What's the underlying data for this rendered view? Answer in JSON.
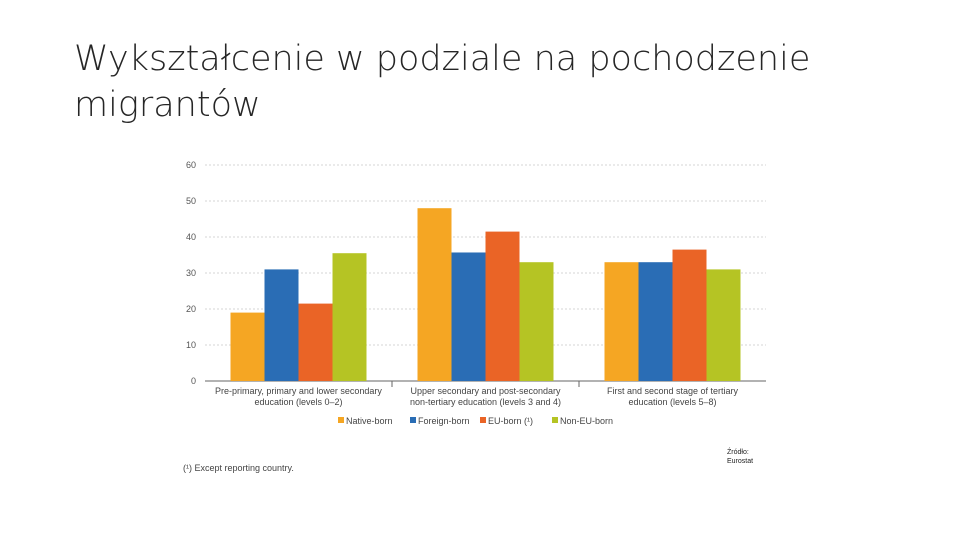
{
  "slide": {
    "title_line1": "Wykształcenie w podziale na pochodzenie",
    "title_line2": "migrantów",
    "footnote": "(¹) Except reporting country.",
    "source_line1": "Źródło:",
    "source_line2": "Eurostat"
  },
  "chart_data": {
    "type": "bar",
    "categories": [
      [
        "Pre-primary, primary and lower secondary",
        "education (levels 0–2)"
      ],
      [
        "Upper secondary and post-secondary",
        "non-tertiary education (levels 3 and 4)"
      ],
      [
        "First and second stage of tertiary",
        "education (levels 5–8)"
      ]
    ],
    "series": [
      {
        "name": "Native-born",
        "color": "#f5a623",
        "values": [
          19,
          48,
          33
        ]
      },
      {
        "name": "Foreign-born",
        "color": "#2a6db5",
        "values": [
          31,
          35.7,
          33
        ]
      },
      {
        "name": "EU-born (¹)",
        "color": "#ea6426",
        "values": [
          21.5,
          41.5,
          36.5
        ]
      },
      {
        "name": "Non-EU-born",
        "color": "#b5c424",
        "values": [
          35.5,
          33,
          31
        ]
      }
    ],
    "ylim": [
      0,
      60
    ],
    "yticks": [
      "0",
      "10",
      "20",
      "30",
      "40",
      "50",
      "60"
    ],
    "grid": true,
    "legend": "bottom"
  }
}
